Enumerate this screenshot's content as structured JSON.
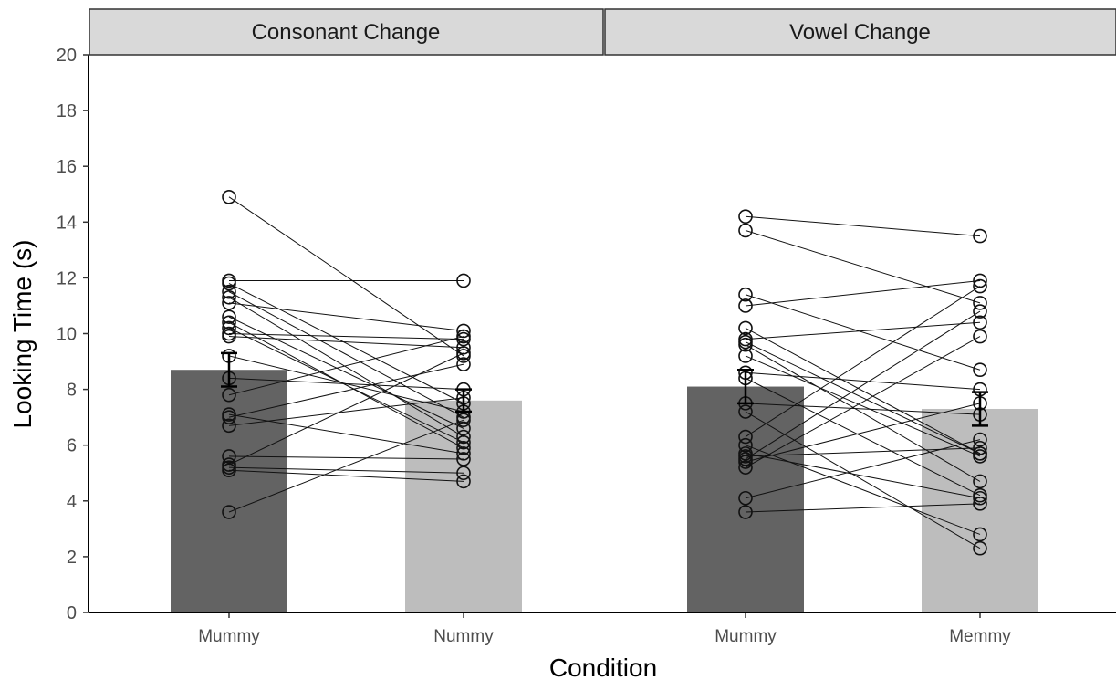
{
  "chart_data": {
    "type": "bar",
    "xlabel": "Condition",
    "ylabel": "Looking Time (s)",
    "ylim": [
      0,
      20
    ],
    "yticks": [
      0,
      2,
      4,
      6,
      8,
      10,
      12,
      14,
      16,
      18,
      20
    ],
    "grid": false,
    "legend": "none",
    "colors": {
      "first": "#636363",
      "second": "#bdbdbd"
    },
    "panels": [
      {
        "strip": "Consonant Change",
        "categories": [
          "Mummy",
          "Nummy"
        ],
        "values": [
          8.7,
          7.6
        ],
        "error": [
          [
            8.1,
            9.3
          ],
          [
            7.2,
            8.0
          ]
        ],
        "pairs": [
          [
            14.9,
            9.2
          ],
          [
            11.9,
            11.9
          ],
          [
            11.8,
            7.5
          ],
          [
            11.5,
            7.0
          ],
          [
            11.3,
            6.3
          ],
          [
            11.1,
            10.1
          ],
          [
            10.6,
            6.6
          ],
          [
            10.4,
            5.9
          ],
          [
            10.2,
            6.1
          ],
          [
            10.0,
            9.8
          ],
          [
            9.9,
            9.5
          ],
          [
            9.2,
            7.2
          ],
          [
            8.4,
            8.0
          ],
          [
            7.8,
            9.9
          ],
          [
            7.1,
            5.7
          ],
          [
            7.0,
            8.9
          ],
          [
            6.7,
            7.7
          ],
          [
            5.6,
            5.5
          ],
          [
            5.3,
            9.3
          ],
          [
            5.2,
            5.0
          ],
          [
            5.1,
            4.7
          ],
          [
            3.6,
            6.9
          ]
        ]
      },
      {
        "strip": "Vowel Change",
        "categories": [
          "Mummy",
          "Memmy"
        ],
        "values": [
          8.1,
          7.3
        ],
        "error": [
          [
            7.5,
            8.7
          ],
          [
            6.7,
            7.9
          ]
        ],
        "pairs": [
          [
            14.2,
            13.5
          ],
          [
            13.7,
            11.1
          ],
          [
            11.4,
            8.7
          ],
          [
            11.0,
            11.9
          ],
          [
            10.2,
            5.7
          ],
          [
            9.8,
            10.4
          ],
          [
            9.7,
            5.7
          ],
          [
            9.6,
            4.7
          ],
          [
            9.2,
            5.6
          ],
          [
            8.6,
            8.0
          ],
          [
            8.4,
            4.2
          ],
          [
            7.5,
            7.1
          ],
          [
            7.2,
            2.3
          ],
          [
            6.3,
            11.7
          ],
          [
            6.0,
            2.8
          ],
          [
            5.7,
            4.1
          ],
          [
            5.6,
            5.9
          ],
          [
            5.5,
            10.8
          ],
          [
            5.4,
            7.5
          ],
          [
            5.2,
            9.9
          ],
          [
            4.1,
            6.2
          ],
          [
            3.6,
            3.9
          ]
        ]
      }
    ]
  }
}
